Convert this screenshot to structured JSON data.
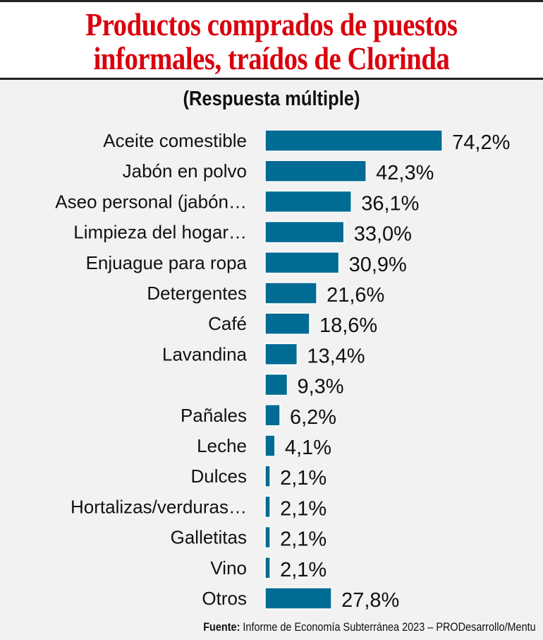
{
  "chart_data": {
    "type": "bar",
    "orientation": "horizontal",
    "title": "Productos comprados de puestos informales, traídos de Clorinda",
    "subtitle": "(Respuesta múltiple)",
    "categories": [
      "Aceite comestible",
      "Jabón en polvo",
      "Aseo personal (jabón…",
      "Limpieza del hogar…",
      "Enjuague para ropa",
      "Detergentes",
      "Café",
      "Lavandina",
      "",
      "Pañales",
      "Leche",
      "Dulces",
      "Hortalizas/verduras…",
      "Galletitas",
      "Vino",
      "Otros"
    ],
    "values": [
      74.2,
      42.3,
      36.1,
      33.0,
      30.9,
      21.6,
      18.6,
      13.4,
      9.3,
      6.2,
      4.1,
      2.1,
      2.1,
      2.1,
      2.1,
      27.8
    ],
    "value_labels": [
      "74,2%",
      "42,3%",
      "36,1%",
      "33,0%",
      "30,9%",
      "21,6%",
      "18,6%",
      "13,4%",
      "9,3%",
      "6,2%",
      "4,1%",
      "2,1%",
      "2,1%",
      "2,1%",
      "2,1%",
      "27,8%"
    ],
    "bar_color": "#006b93",
    "xlim": [
      0,
      100
    ]
  },
  "header": {
    "title_line1": "Productos comprados de puestos",
    "title_line2": "informales, traídos de Clorinda"
  },
  "source": {
    "label": "Fuente:",
    "text": " Informe de Economía Subterránea 2023 – PRODesarrollo/Mentu"
  }
}
